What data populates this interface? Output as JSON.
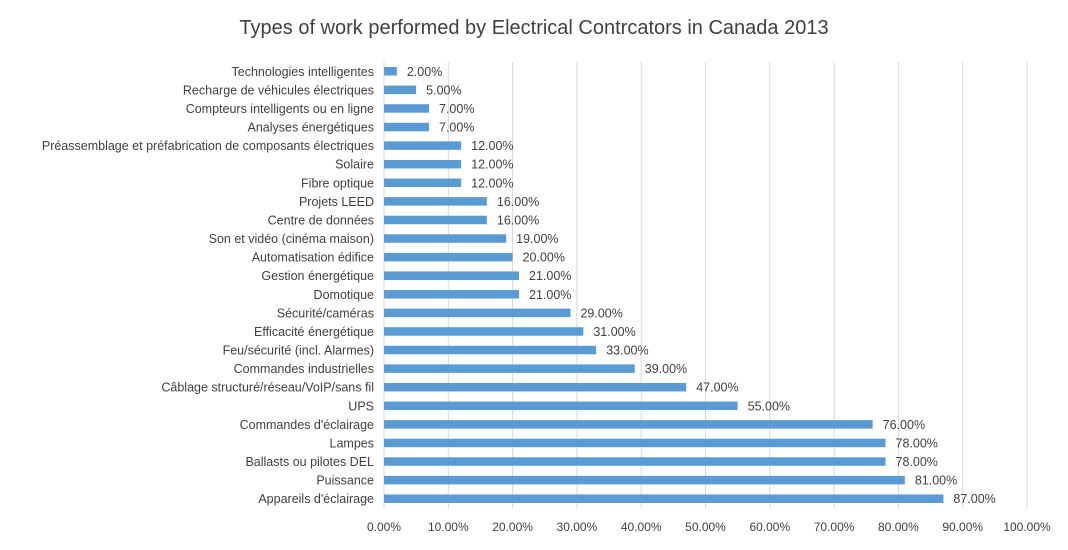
{
  "chart_data": {
    "type": "bar",
    "orientation": "horizontal",
    "title": "Types of work performed by Electrical Contrcators in Canada 2013",
    "xlabel": "",
    "ylabel": "",
    "xlim": [
      0,
      100
    ],
    "x_ticks": [
      0,
      10,
      20,
      30,
      40,
      50,
      60,
      70,
      80,
      90,
      100
    ],
    "x_tick_labels": [
      "0.00%",
      "10.00%",
      "20.00%",
      "30.00%",
      "40.00%",
      "50.00%",
      "60.00%",
      "70.00%",
      "80.00%",
      "90.00%",
      "100.00%"
    ],
    "grid": true,
    "legend": "none",
    "bar_color": "#5b9bd5",
    "categories": [
      "Technologies intelligentes",
      "Recharge de véhicules électriques",
      "Compteurs intelligents ou en ligne",
      "Analyses énergétiques",
      "Préassemblage et préfabrication de composants électriques",
      "Solaire",
      "Fibre optique",
      "Projets LEED",
      "Centre de données",
      "Son et vidéo (cinéma maison)",
      "Automatisation édifice",
      "Gestion énergétique",
      "Domotique",
      "Sécurité/caméras",
      "Efficacité énergétique",
      "Feu/sécurité (incl. Alarmes)",
      "Commandes industrielles",
      "Câblage structuré/réseau/VoIP/sans fil",
      "UPS",
      "Commandes d'éclairage",
      "Lampes",
      "Ballasts ou pilotes DEL",
      "Puissance",
      "Appareils d'éclairage"
    ],
    "values": [
      2,
      5,
      7,
      7,
      12,
      12,
      12,
      16,
      16,
      19,
      20,
      21,
      21,
      29,
      31,
      33,
      39,
      47,
      55,
      76,
      78,
      78,
      81,
      87
    ],
    "value_labels": [
      "2.00%",
      "5.00%",
      "7.00%",
      "7.00%",
      "12.00%",
      "12.00%",
      "12.00%",
      "16.00%",
      "16.00%",
      "19.00%",
      "20.00%",
      "21.00%",
      "21.00%",
      "29.00%",
      "31.00%",
      "33.00%",
      "39.00%",
      "47.00%",
      "55.00%",
      "76.00%",
      "78.00%",
      "78.00%",
      "81.00%",
      "87.00%"
    ]
  }
}
